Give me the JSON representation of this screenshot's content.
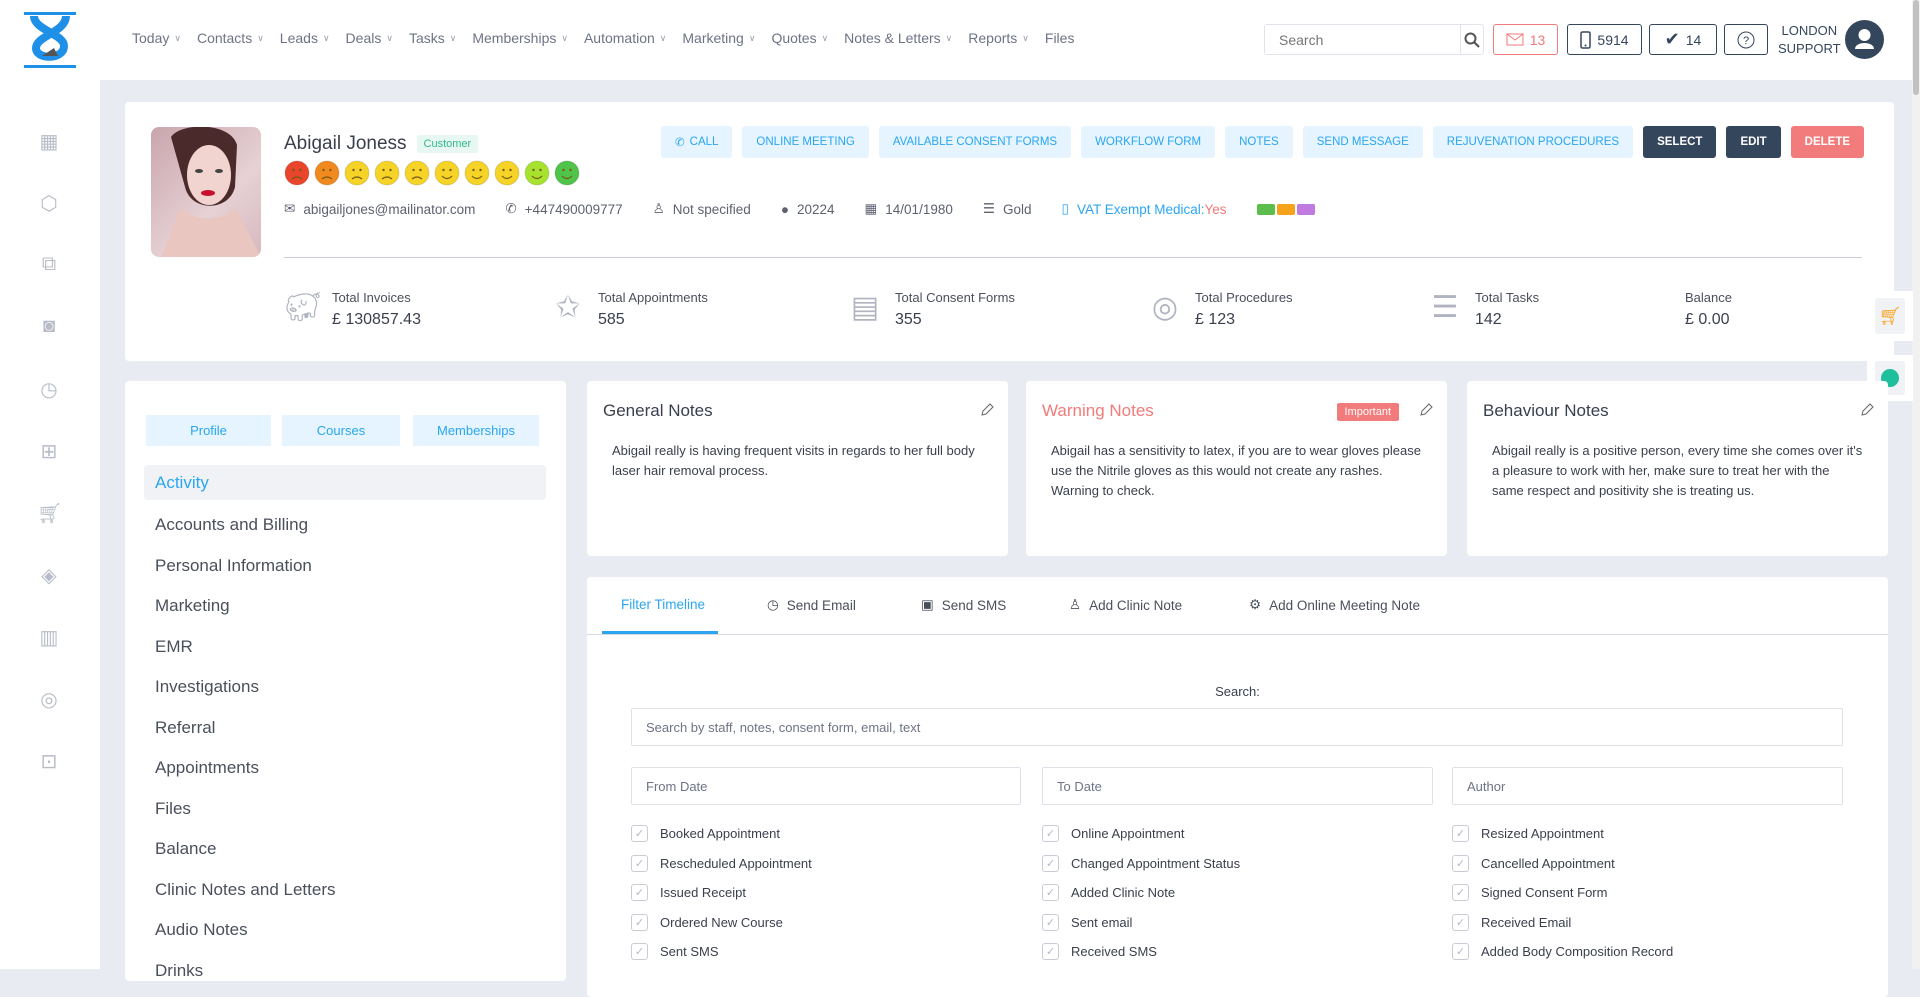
{
  "nav": {
    "items": [
      {
        "label": "Today",
        "dropdown": true
      },
      {
        "label": "Contacts",
        "dropdown": true
      },
      {
        "label": "Leads",
        "dropdown": true
      },
      {
        "label": "Deals",
        "dropdown": true
      },
      {
        "label": "Tasks",
        "dropdown": true
      },
      {
        "label": "Memberships",
        "dropdown": true
      },
      {
        "label": "Automation",
        "dropdown": true
      },
      {
        "label": "Marketing",
        "dropdown": true
      },
      {
        "label": "Quotes",
        "dropdown": true
      },
      {
        "label": "Notes & Letters",
        "dropdown": true
      },
      {
        "label": "Reports",
        "dropdown": true
      },
      {
        "label": "Files",
        "dropdown": false
      }
    ]
  },
  "topbar": {
    "search_placeholder": "Search",
    "mail_count": "13",
    "phone_count": "5914",
    "tasks_count": "14",
    "user_line1": "LONDON",
    "user_line2": "SUPPORT"
  },
  "sidebar": {
    "icons": [
      "calendar-icon",
      "box-icon",
      "copy-icon",
      "camera-icon",
      "history-icon",
      "gift-icon",
      "cart-icon",
      "tag-icon",
      "report-icon",
      "user-circle-icon",
      "lock-icon"
    ]
  },
  "contact": {
    "name": "Abigail Joness",
    "badge": "Customer",
    "email": "abigailjones@mailinator.com",
    "phone": "+447490009777",
    "gender": "Not specified",
    "id": "20224",
    "dob": "14/01/1980",
    "tier": "Gold",
    "vat_label": "VAT Exempt Medical:",
    "vat_value": "Yes",
    "tag_colors": [
      "#5cbd4c",
      "#f7a21b",
      "#c17be0"
    ],
    "satisfaction_colors": [
      "#e8452c",
      "#f08a1f",
      "#f5d327",
      "#f5d327",
      "#f5d327",
      "#f5d327",
      "#f5d327",
      "#f5d327",
      "#a6e22e",
      "#4fc34a"
    ]
  },
  "actions": {
    "call": "CALL",
    "online_meeting": "ONLINE MEETING",
    "consent": "AVAILABLE CONSENT FORMS",
    "workflow": "WORKFLOW FORM",
    "notes": "NOTES",
    "send_message": "SEND MESSAGE",
    "rejuvenation": "REJUVENATION PROCEDURES",
    "select": "SELECT",
    "edit": "EDIT",
    "delete": "DELETE"
  },
  "stats": [
    {
      "label": "Total Invoices",
      "value": "£ 130857.43"
    },
    {
      "label": "Total Appointments",
      "value": "585"
    },
    {
      "label": "Total Consent Forms",
      "value": "355"
    },
    {
      "label": "Total Procedures",
      "value": "£ 123"
    },
    {
      "label": "Total Tasks",
      "value": "142"
    },
    {
      "label": "Balance",
      "value": "£ 0.00"
    }
  ],
  "left": {
    "tabs": [
      "Profile",
      "Courses",
      "Memberships"
    ],
    "menu": [
      "Activity",
      "Accounts and Billing",
      "Personal Information",
      "Marketing",
      "EMR",
      "Investigations",
      "Referral",
      "Appointments",
      "Files",
      "Balance",
      "Clinic Notes and Letters",
      "Audio Notes",
      "Drinks"
    ]
  },
  "notes": [
    {
      "title": "General Notes",
      "body": "Abigail really is having frequent visits in regards to her full body laser hair removal process."
    },
    {
      "title": "Warning Notes",
      "badge": "Important",
      "body": "Abigail has a sensitivity to latex, if you are to wear gloves please use the Nitrile gloves as this would not create any rashes. Warning to check."
    },
    {
      "title": "Behaviour Notes",
      "body": "Abigail really is a positive person, every time she comes over it's a pleasure to work with her, make sure to treat her with the same respect and positivity she is treating us."
    }
  ],
  "timeline": {
    "tabs": [
      "Filter Timeline",
      "Send Email",
      "Send SMS",
      "Add Clinic Note",
      "Add Online Meeting Note"
    ],
    "search_label": "Search:",
    "search_placeholder": "Search by staff, notes, consent form, email, text",
    "from_placeholder": "From Date",
    "to_placeholder": "To Date",
    "author_placeholder": "Author",
    "filters": [
      [
        "Booked Appointment",
        "Online Appointment",
        "Resized Appointment"
      ],
      [
        "Rescheduled Appointment",
        "Changed Appointment Status",
        "Cancelled Appointment"
      ],
      [
        "Issued Receipt",
        "Added Clinic Note",
        "Signed Consent Form"
      ],
      [
        "Ordered New Course",
        "Sent email",
        "Received Email"
      ],
      [
        "Sent SMS",
        "Received SMS",
        "Added Body Composition Record"
      ]
    ]
  },
  "colors": {
    "accent": "#2aa6f0",
    "dark": "#34465c",
    "danger": "#f27b7b"
  }
}
